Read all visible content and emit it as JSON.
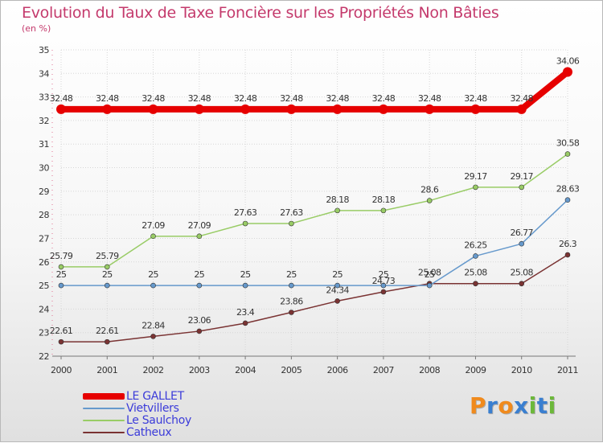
{
  "header": {
    "title": "Evolution du Taux de Taxe Foncière sur les Propriétés Non Bâties",
    "subtitle": "(en %)"
  },
  "logo": {
    "text": "Proxiti",
    "letters": [
      "P",
      "r",
      "o",
      "x",
      "i",
      "t",
      "i"
    ],
    "colors": [
      "#f08a1c",
      "#3a7fd0",
      "#f08a1c",
      "#3a7fd0",
      "#6cb83a",
      "#3a7fd0",
      "#6cb83a"
    ]
  },
  "chart_data": {
    "type": "line",
    "title": "Evolution du Taux de Taxe Foncière sur les Propriétés Non Bâties",
    "ylabel": "(en %)",
    "xlabel": "",
    "categories": [
      "2000",
      "2001",
      "2002",
      "2003",
      "2004",
      "2005",
      "2006",
      "2007",
      "2008",
      "2009",
      "2010",
      "2011"
    ],
    "ylim": [
      22,
      35
    ],
    "yticks": [
      22,
      23,
      24,
      25,
      26,
      27,
      28,
      29,
      30,
      31,
      32,
      33,
      34,
      35
    ],
    "grid": true,
    "legend_position": "bottom-left",
    "series": [
      {
        "name": "LE GALLET",
        "color": "#e60000",
        "values": [
          32.48,
          32.48,
          32.48,
          32.48,
          32.48,
          32.48,
          32.48,
          32.48,
          32.48,
          32.48,
          32.48,
          34.06
        ],
        "labels": [
          "32.48",
          "32.48",
          "32.48",
          "32.48",
          "32.48",
          "32.48",
          "32.48",
          "32.48",
          "32.48",
          "32.48",
          "32.48",
          "34.06"
        ]
      },
      {
        "name": "Vietvillers",
        "color": "#6699cc",
        "values": [
          25,
          25,
          25,
          25,
          25,
          25,
          25,
          25,
          25,
          26.25,
          26.77,
          28.63
        ],
        "labels": [
          "25",
          "25",
          "25",
          "25",
          "25",
          "25",
          "25",
          "25",
          "25",
          "26.25",
          "26.77",
          "28.63"
        ]
      },
      {
        "name": "Le Saulchoy",
        "color": "#99cc66",
        "values": [
          25.79,
          25.79,
          27.09,
          27.09,
          27.63,
          27.63,
          28.18,
          28.18,
          28.6,
          29.17,
          29.17,
          30.58
        ],
        "labels": [
          "25.79",
          "25.79",
          "27.09",
          "27.09",
          "27.63",
          "27.63",
          "28.18",
          "28.18",
          "28.6",
          "29.17",
          "29.17",
          "30.58"
        ]
      },
      {
        "name": "Catheux",
        "color": "#7a3333",
        "values": [
          22.61,
          22.61,
          22.84,
          23.06,
          23.4,
          23.86,
          24.34,
          24.73,
          25.08,
          25.08,
          25.08,
          26.3
        ],
        "labels": [
          "22.61",
          "22.61",
          "22.84",
          "23.06",
          "23.4",
          "23.86",
          "24.34",
          "24.73",
          "25.08",
          "25.08",
          "25.08",
          "26.3"
        ]
      }
    ]
  }
}
